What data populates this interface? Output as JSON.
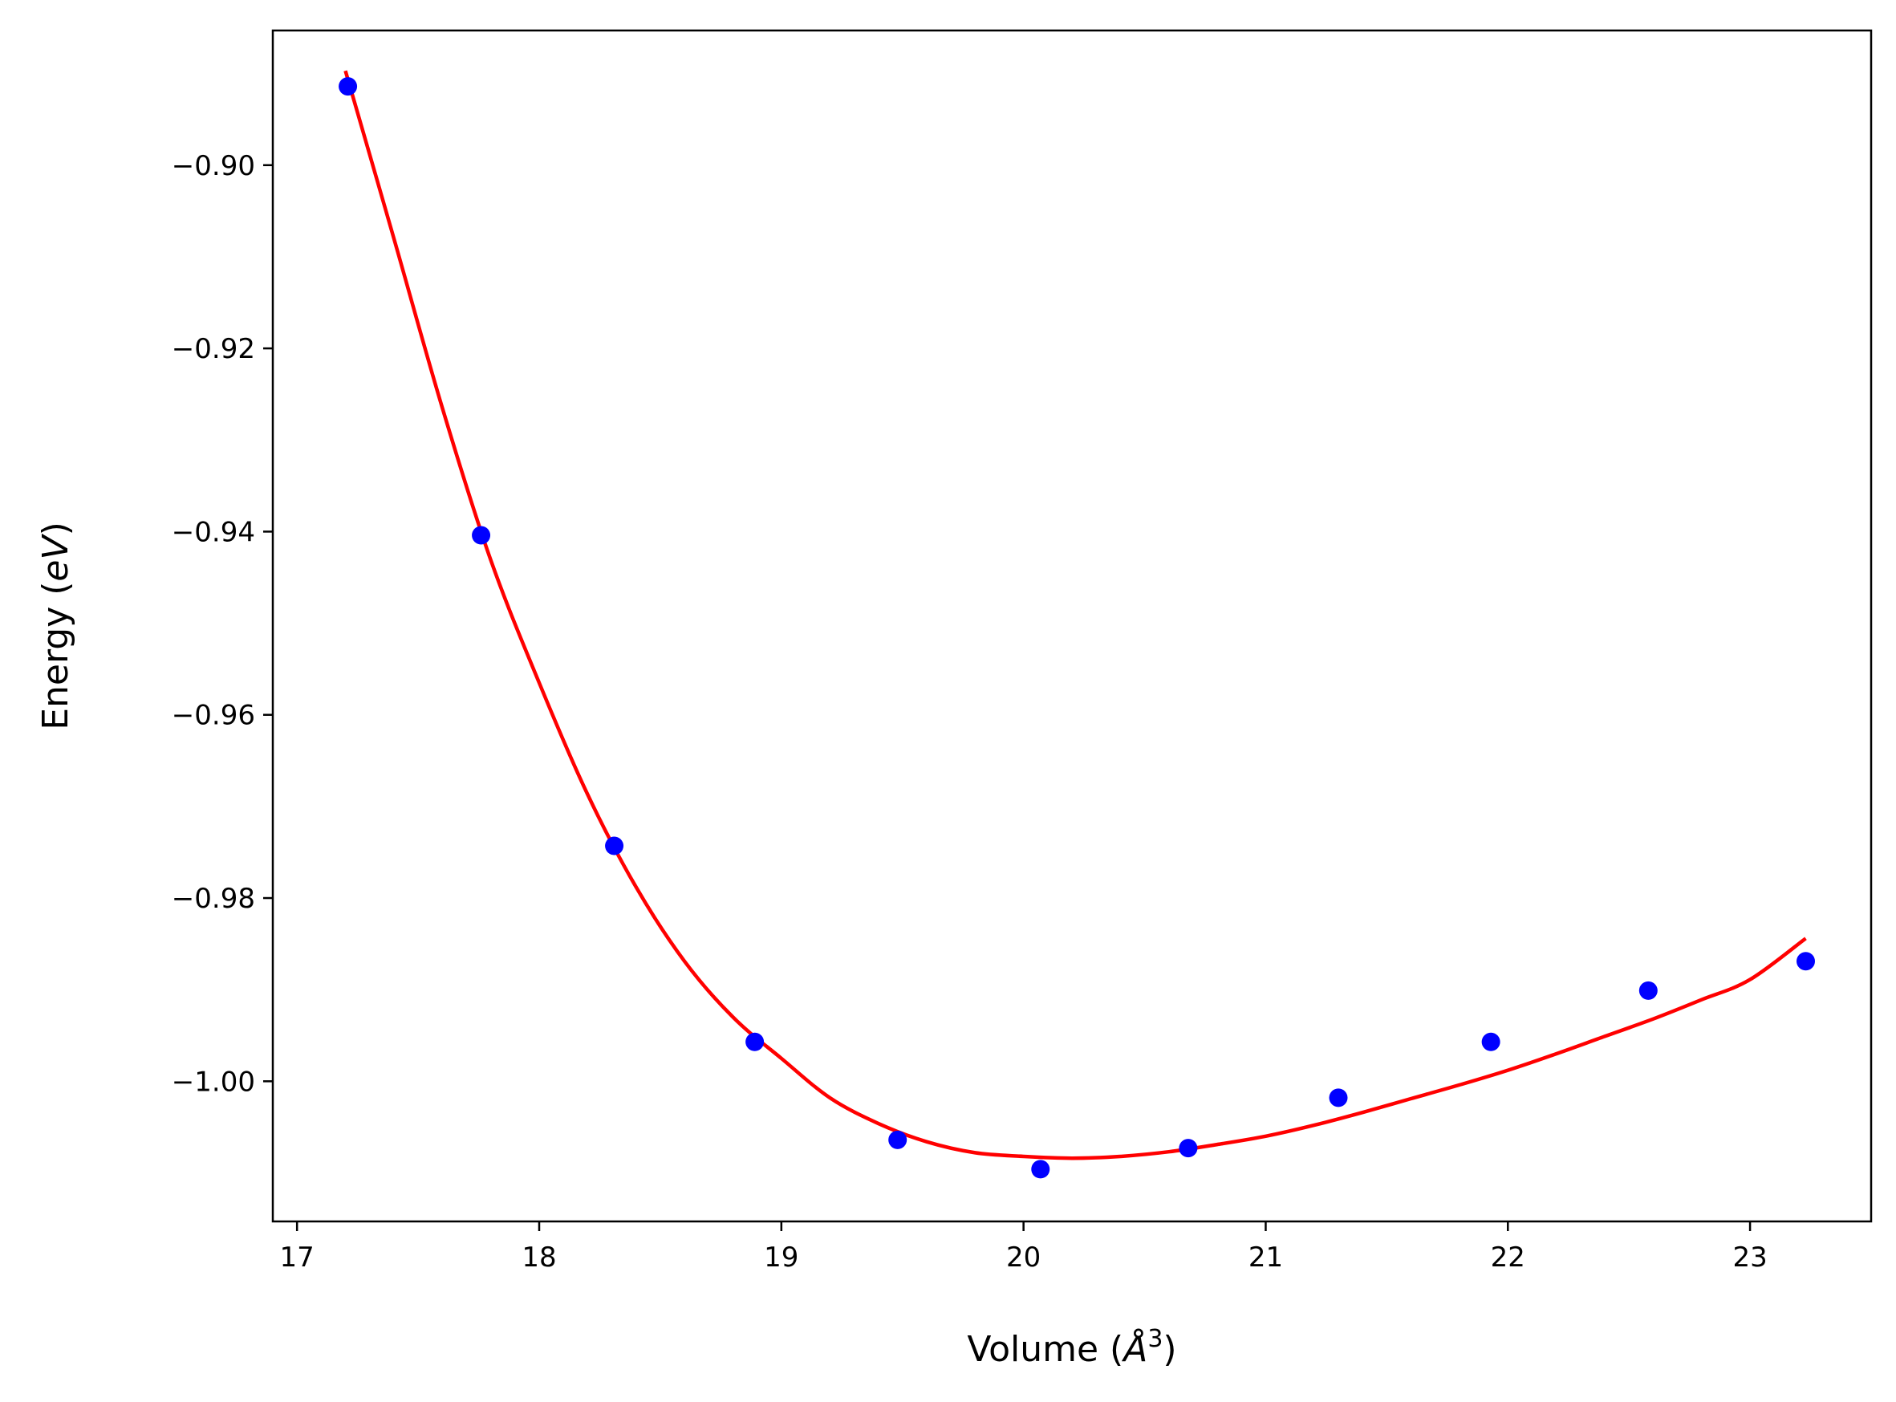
{
  "chart_data": {
    "type": "scatter",
    "xlabel": "Volume (Å³)",
    "xlabel_parts": {
      "prefix": "Volume (",
      "var": "Å",
      "sup": "3",
      "suffix": ")"
    },
    "ylabel": "Energy (eV)",
    "ylabel_parts": {
      "prefix": "Energy (",
      "var": "eV",
      "suffix": ")"
    },
    "xlim": [
      16.9,
      23.5
    ],
    "ylim": [
      -1.0153,
      -0.8853
    ],
    "x_ticks": [
      17,
      18,
      19,
      20,
      21,
      22,
      23
    ],
    "x_tick_labels": [
      "17",
      "18",
      "19",
      "20",
      "21",
      "22",
      "23"
    ],
    "y_ticks": [
      -1.0,
      -0.98,
      -0.96,
      -0.94,
      -0.92,
      -0.9
    ],
    "y_tick_labels": [
      "−1.00",
      "−0.98",
      "−0.96",
      "−0.94",
      "−0.92",
      "−0.90"
    ],
    "grid": false,
    "series": [
      {
        "kind": "points",
        "color": "#0000ff",
        "x": [
          17.21,
          17.76,
          18.31,
          18.89,
          19.48,
          20.07,
          20.68,
          21.3,
          21.93,
          22.58,
          23.23
        ],
        "y": [
          -0.8914,
          -0.9404,
          -0.9743,
          -0.9957,
          -1.0064,
          -1.0096,
          -1.0073,
          -1.0018,
          -0.9957,
          -0.9901,
          -0.9869
        ]
      },
      {
        "kind": "fit-curve",
        "color": "#ff0000",
        "x": [
          17.2,
          17.4,
          17.6,
          17.8,
          18.0,
          18.2,
          18.4,
          18.6,
          18.8,
          19.0,
          19.2,
          19.4,
          19.6,
          19.8,
          20.0,
          20.2,
          20.4,
          20.6,
          20.8,
          21.0,
          21.2,
          21.4,
          21.6,
          21.8,
          22.0,
          22.2,
          22.4,
          22.6,
          22.8,
          23.0,
          23.23
        ],
        "y": [
          -0.8897,
          -0.908,
          -0.9265,
          -0.9431,
          -0.9565,
          -0.9687,
          -0.9788,
          -0.9869,
          -0.993,
          -0.9975,
          -1.0018,
          -1.0046,
          -1.0066,
          -1.0078,
          -1.0082,
          -1.0084,
          -1.0082,
          -1.0077,
          -1.0069,
          -1.006,
          -1.0048,
          -1.0034,
          -1.0019,
          -1.0004,
          -0.9988,
          -0.997,
          -0.9951,
          -0.9932,
          -0.9911,
          -0.9889,
          -0.9844
        ]
      }
    ]
  }
}
